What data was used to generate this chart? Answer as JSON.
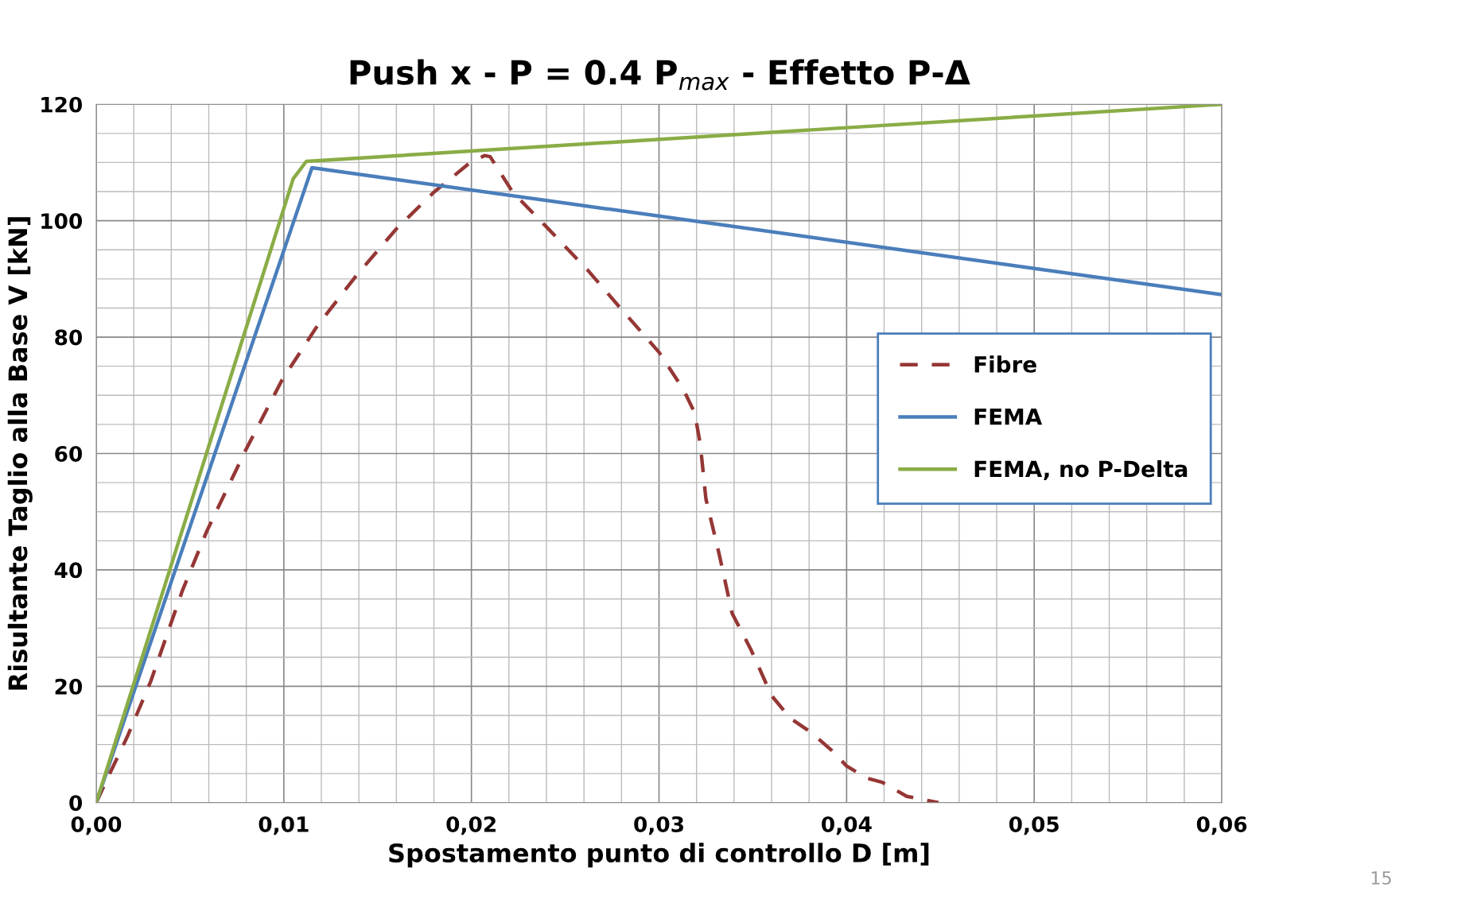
{
  "chart_data": {
    "type": "line",
    "title": "Push x - P = 0.4 P$_{max}$ - Effetto P-Δ",
    "xlabel": "Spostamento punto di controllo D [m]",
    "ylabel": "Risultante Taglio alla Base V [kN]",
    "xlim": [
      0,
      0.06
    ],
    "ylim": [
      0,
      120
    ],
    "xticks": [
      {
        "value": 0,
        "label": "0,00"
      },
      {
        "value": 0.01,
        "label": "0,01"
      },
      {
        "value": 0.02,
        "label": "0,02"
      },
      {
        "value": 0.03,
        "label": "0,03"
      },
      {
        "value": 0.04,
        "label": "0,04"
      },
      {
        "value": 0.05,
        "label": "0,05"
      },
      {
        "value": 0.06,
        "label": "0,06"
      }
    ],
    "yticks": [
      0,
      20,
      40,
      60,
      80,
      100,
      120
    ],
    "grid": true,
    "legend": "right",
    "annotations": [
      "15"
    ],
    "series": [
      {
        "name": "Fibre",
        "color": "#953735",
        "line_style": "dashed",
        "x": [
          0,
          0.0006,
          0.00165,
          0.0029,
          0.0046,
          0.0059,
          0.008,
          0.0099,
          0.0118,
          0.0139,
          0.016,
          0.018,
          0.0199,
          0.0207,
          0.021,
          0.0222,
          0.0241,
          0.0262,
          0.0281,
          0.03,
          0.0313,
          0.0319,
          0.0322,
          0.0325,
          0.0332,
          0.0339,
          0.0349,
          0.036,
          0.037,
          0.0381,
          0.0392,
          0.04,
          0.0411,
          0.0419,
          0.0432,
          0.0449
        ],
        "values": [
          0,
          4.2,
          11.3,
          20.8,
          36.5,
          46.7,
          60.8,
          72.6,
          82,
          90.7,
          98.6,
          104.9,
          109.9,
          111.2,
          111,
          104.9,
          98.6,
          91.5,
          84.4,
          77.4,
          71,
          67,
          61.6,
          52.2,
          42.8,
          32.5,
          26.3,
          18.4,
          14.5,
          12.1,
          9,
          6.3,
          4.2,
          3.5,
          1.1,
          0
        ]
      },
      {
        "name": "FEMA",
        "color": "#4a7ebb",
        "line_style": "solid",
        "x": [
          0,
          0.0115,
          0.06
        ],
        "values": [
          0,
          109.1,
          87.3
        ]
      },
      {
        "name": "FEMA, no P-Delta",
        "color": "#8aac46",
        "line_style": "solid",
        "x": [
          0,
          0.0105,
          0.0112,
          0.06
        ],
        "values": [
          0,
          107.2,
          110.2,
          120
        ]
      }
    ]
  }
}
